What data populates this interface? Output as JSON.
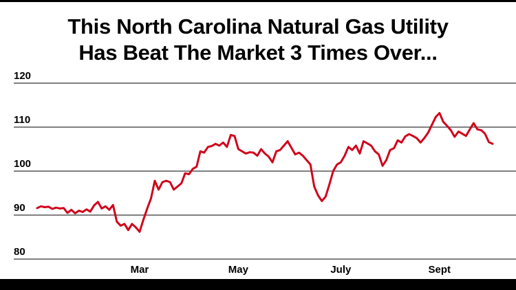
{
  "header": {
    "title_line1": "This North Carolina Natural Gas Utility",
    "title_line2": "Has Beat The Market 3 Times Over..."
  },
  "colors": {
    "line": "#d0021b",
    "grid": "#000000",
    "text": "#000000"
  },
  "chart_data": {
    "type": "line",
    "title": "This North Carolina Natural Gas Utility Has Beat The Market 3 Times Over...",
    "xlabel": "",
    "ylabel": "",
    "ylim": [
      80,
      120
    ],
    "yticks": [
      80,
      90,
      100,
      110,
      120
    ],
    "ytick_labels": [
      "80",
      "90",
      "100",
      "110",
      "120"
    ],
    "x_tick_labels": [
      "Mar",
      "May",
      "July",
      "Sept"
    ],
    "x_tick_index": [
      27,
      53,
      80,
      106
    ],
    "grid": "horizontal",
    "legend": "none",
    "series": [
      {
        "values": [
          91.6,
          92.0,
          91.8,
          91.9,
          91.4,
          91.7,
          91.5,
          91.6,
          90.5,
          91.2,
          90.4,
          91.0,
          90.7,
          91.3,
          90.8,
          92.2,
          93.0,
          91.5,
          92.0,
          91.2,
          92.3,
          88.5,
          87.6,
          88.0,
          86.6,
          88.0,
          87.2,
          86.2,
          89.0,
          91.5,
          93.8,
          97.8,
          95.8,
          97.5,
          97.8,
          97.5,
          95.8,
          96.5,
          97.2,
          99.5,
          99.3,
          100.5,
          101.0,
          104.5,
          104.2,
          105.5,
          105.7,
          106.2,
          105.8,
          106.5,
          105.5,
          108.2,
          108.0,
          105.0,
          104.5,
          104.0,
          104.3,
          104.2,
          103.5,
          105.0,
          104.0,
          103.3,
          102.0,
          104.5,
          104.8,
          105.8,
          106.8,
          105.3,
          103.8,
          104.2,
          103.5,
          102.5,
          101.5,
          96.5,
          94.5,
          93.2,
          94.2,
          97.0,
          100.0,
          101.5,
          102.0,
          103.5,
          105.5,
          104.8,
          105.8,
          104.0,
          106.8,
          106.3,
          105.8,
          104.5,
          103.8,
          101.2,
          102.5,
          104.8,
          105.2,
          107.0,
          106.5,
          107.9,
          108.4,
          108.0,
          107.5,
          106.5,
          107.5,
          108.7,
          110.5,
          112.3,
          113.2,
          111.2,
          110.3,
          109.3,
          107.8,
          109.0,
          108.5,
          108.0,
          109.5,
          110.9,
          109.5,
          109.3,
          108.5,
          106.6,
          106.2
        ]
      }
    ]
  }
}
